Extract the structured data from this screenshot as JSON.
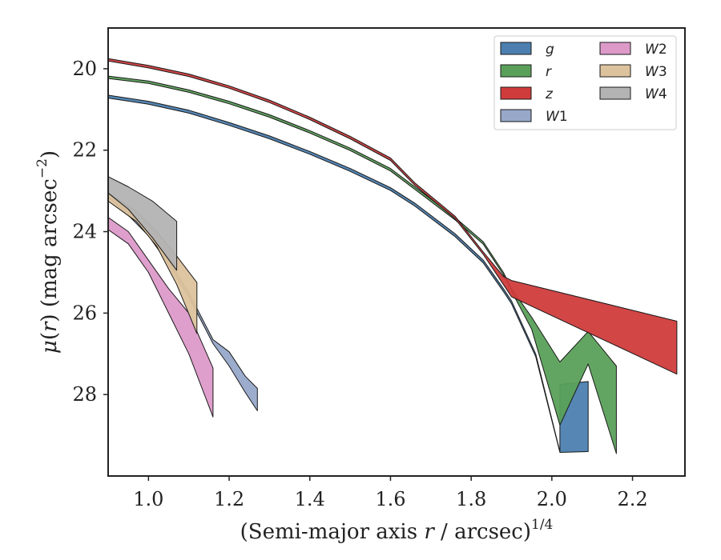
{
  "chart_data": {
    "type": "area",
    "xlabel": "(Semi-major axis r / arcsec)^{1/4}",
    "xlabel_parts": {
      "prefix": "(Semi-major axis ",
      "var": "r",
      "middle": " / arcsec)",
      "sup": "1/4"
    },
    "ylabel_parts": {
      "mu": "μ",
      "open": "(",
      "var": "r",
      "close": ") (mag arcsec",
      "sup": "−2",
      "end": ")"
    },
    "xlim": [
      0.9,
      2.33
    ],
    "ylim": [
      30.0,
      19.0
    ],
    "y_inverted": true,
    "xticks": [
      1.0,
      1.2,
      1.4,
      1.6,
      1.8,
      2.0,
      2.2
    ],
    "xtick_labels": [
      "1.0",
      "1.2",
      "1.4",
      "1.6",
      "1.8",
      "2.0",
      "2.2"
    ],
    "yticks": [
      20,
      22,
      24,
      26,
      28
    ],
    "ytick_labels": [
      "20",
      "22",
      "24",
      "26",
      "28"
    ],
    "legend_placement": "top-right",
    "legend_columns": 2,
    "series": [
      {
        "name": "g",
        "label_main": "g",
        "label_sub": "",
        "color": "#4c7fb0",
        "upper": [
          [
            0.9,
            20.65
          ],
          [
            1.0,
            20.8
          ],
          [
            1.1,
            21.02
          ],
          [
            1.2,
            21.32
          ],
          [
            1.3,
            21.65
          ],
          [
            1.4,
            22.03
          ],
          [
            1.5,
            22.45
          ],
          [
            1.6,
            22.92
          ],
          [
            1.66,
            23.3
          ],
          [
            1.76,
            24.05
          ],
          [
            1.83,
            24.7
          ],
          [
            1.88,
            25.4
          ],
          [
            1.9,
            25.7
          ],
          [
            1.96,
            27.0
          ],
          [
            2.02,
            29.4
          ],
          [
            2.02,
            27.75
          ],
          [
            2.09,
            27.68
          ]
        ],
        "lower": [
          [
            0.9,
            20.72
          ],
          [
            1.0,
            20.87
          ],
          [
            1.1,
            21.09
          ],
          [
            1.2,
            21.39
          ],
          [
            1.3,
            21.72
          ],
          [
            1.4,
            22.1
          ],
          [
            1.5,
            22.52
          ],
          [
            1.6,
            22.99
          ],
          [
            1.66,
            23.37
          ],
          [
            1.76,
            24.12
          ],
          [
            1.83,
            24.77
          ],
          [
            1.88,
            25.47
          ],
          [
            1.9,
            25.77
          ],
          [
            1.96,
            27.07
          ],
          [
            2.02,
            29.42
          ],
          [
            2.09,
            29.4
          ]
        ]
      },
      {
        "name": "r",
        "label_main": "r",
        "label_sub": "",
        "color": "#5aa05a",
        "upper": [
          [
            0.9,
            20.18
          ],
          [
            1.0,
            20.3
          ],
          [
            1.1,
            20.52
          ],
          [
            1.2,
            20.8
          ],
          [
            1.3,
            21.13
          ],
          [
            1.4,
            21.52
          ],
          [
            1.5,
            21.95
          ],
          [
            1.6,
            22.45
          ],
          [
            1.66,
            22.9
          ],
          [
            1.76,
            23.65
          ],
          [
            1.83,
            24.25
          ],
          [
            1.88,
            25.0
          ],
          [
            1.9,
            25.4
          ],
          [
            1.95,
            26.1
          ],
          [
            2.02,
            27.2
          ],
          [
            2.09,
            26.45
          ],
          [
            2.16,
            27.3
          ]
        ],
        "lower": [
          [
            0.9,
            20.24
          ],
          [
            1.0,
            20.36
          ],
          [
            1.1,
            20.58
          ],
          [
            1.2,
            20.86
          ],
          [
            1.3,
            21.19
          ],
          [
            1.4,
            21.58
          ],
          [
            1.5,
            22.01
          ],
          [
            1.6,
            22.51
          ],
          [
            1.66,
            22.96
          ],
          [
            1.76,
            23.71
          ],
          [
            1.83,
            24.31
          ],
          [
            1.88,
            25.06
          ],
          [
            1.9,
            25.46
          ],
          [
            1.95,
            26.4
          ],
          [
            2.02,
            28.75
          ],
          [
            2.09,
            27.25
          ],
          [
            2.16,
            29.45
          ]
        ]
      },
      {
        "name": "z",
        "label_main": "z",
        "label_sub": "",
        "color": "#d03c3c",
        "upper": [
          [
            0.9,
            19.75
          ],
          [
            1.0,
            19.92
          ],
          [
            1.1,
            20.13
          ],
          [
            1.2,
            20.42
          ],
          [
            1.3,
            20.77
          ],
          [
            1.4,
            21.19
          ],
          [
            1.5,
            21.66
          ],
          [
            1.6,
            22.19
          ],
          [
            1.66,
            22.8
          ],
          [
            1.76,
            23.62
          ],
          [
            1.83,
            24.5
          ],
          [
            1.88,
            25.1
          ],
          [
            1.9,
            25.2
          ],
          [
            2.31,
            26.2
          ]
        ],
        "lower": [
          [
            0.9,
            19.81
          ],
          [
            1.0,
            19.98
          ],
          [
            1.1,
            20.19
          ],
          [
            1.2,
            20.48
          ],
          [
            1.3,
            20.83
          ],
          [
            1.4,
            21.25
          ],
          [
            1.5,
            21.72
          ],
          [
            1.6,
            22.25
          ],
          [
            1.66,
            22.86
          ],
          [
            1.76,
            23.68
          ],
          [
            1.83,
            24.56
          ],
          [
            1.88,
            25.3
          ],
          [
            1.9,
            25.6
          ],
          [
            2.31,
            27.5
          ]
        ]
      },
      {
        "name": "W1",
        "label_main": "W",
        "label_sub": "1",
        "color": "#97a8c9",
        "upper": [
          [
            0.9,
            23.05
          ],
          [
            0.95,
            23.5
          ],
          [
            1.0,
            24.0
          ],
          [
            1.05,
            24.7
          ],
          [
            1.1,
            25.5
          ],
          [
            1.16,
            26.65
          ],
          [
            1.2,
            26.95
          ],
          [
            1.24,
            27.55
          ],
          [
            1.27,
            27.85
          ]
        ],
        "lower": [
          [
            0.9,
            23.15
          ],
          [
            0.95,
            23.6
          ],
          [
            1.0,
            24.1
          ],
          [
            1.05,
            24.8
          ],
          [
            1.1,
            25.6
          ],
          [
            1.16,
            26.75
          ],
          [
            1.2,
            27.3
          ],
          [
            1.24,
            27.95
          ],
          [
            1.27,
            28.4
          ]
        ]
      },
      {
        "name": "W2",
        "label_main": "W",
        "label_sub": "2",
        "color": "#dd9ac9",
        "upper": [
          [
            0.9,
            23.65
          ],
          [
            0.95,
            24.0
          ],
          [
            1.0,
            24.7
          ],
          [
            1.05,
            25.4
          ],
          [
            1.1,
            26.0
          ],
          [
            1.16,
            27.35
          ]
        ],
        "lower": [
          [
            0.9,
            23.95
          ],
          [
            0.95,
            24.3
          ],
          [
            1.0,
            25.0
          ],
          [
            1.05,
            26.0
          ],
          [
            1.1,
            27.0
          ],
          [
            1.16,
            28.55
          ]
        ]
      },
      {
        "name": "W3",
        "label_main": "W",
        "label_sub": "3",
        "color": "#ddc39d",
        "upper": [
          [
            0.9,
            23.05
          ],
          [
            0.97,
            23.5
          ],
          [
            1.02,
            24.0
          ],
          [
            1.07,
            24.6
          ],
          [
            1.12,
            25.25
          ]
        ],
        "lower": [
          [
            0.9,
            23.25
          ],
          [
            0.97,
            23.75
          ],
          [
            1.02,
            24.35
          ],
          [
            1.07,
            25.3
          ],
          [
            1.12,
            26.5
          ]
        ]
      },
      {
        "name": "W4",
        "label_main": "W",
        "label_sub": "4",
        "color": "#b3b3b3",
        "upper": [
          [
            0.9,
            22.65
          ],
          [
            0.95,
            22.9
          ],
          [
            1.01,
            23.25
          ],
          [
            1.07,
            23.75
          ]
        ],
        "lower": [
          [
            0.9,
            23.05
          ],
          [
            0.95,
            23.45
          ],
          [
            1.01,
            24.15
          ],
          [
            1.07,
            24.95
          ]
        ]
      }
    ]
  }
}
